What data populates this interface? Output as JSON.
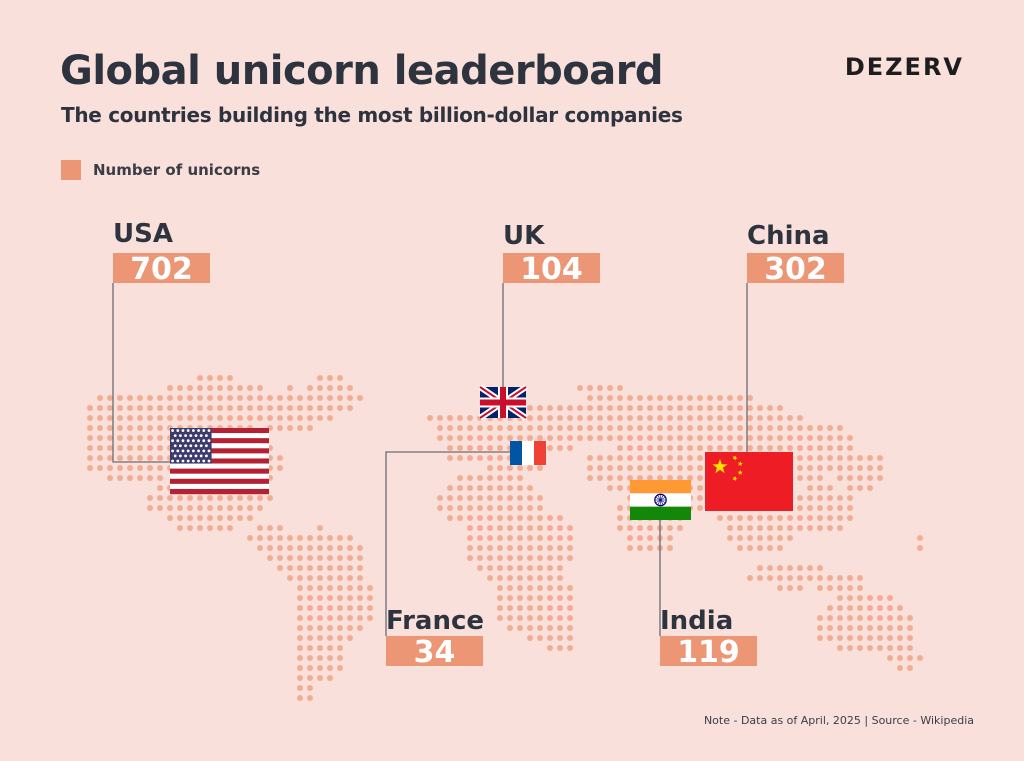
{
  "header": {
    "title": "Global unicorn leaderboard",
    "subtitle": "The countries building the most billion-dollar companies",
    "brand": "DEZERV"
  },
  "legend": {
    "label": "Number of unicorns",
    "color": "#ec9676"
  },
  "note": "Note - Data as of April, 2025 | Source - Wikipedia",
  "colors": {
    "bar": "#ec9676",
    "line": "#6b6c75",
    "dots": "#f2ad93",
    "text": "#2e3340"
  },
  "chart_data": {
    "type": "bar",
    "series_name": "Number of unicorns",
    "categories": [
      "USA",
      "UK",
      "China",
      "France",
      "India"
    ],
    "values": [
      702,
      104,
      302,
      34,
      119
    ],
    "flags": [
      "us-flag-icon",
      "uk-flag-icon",
      "china-flag-icon",
      "france-flag-icon",
      "india-flag-icon"
    ]
  }
}
